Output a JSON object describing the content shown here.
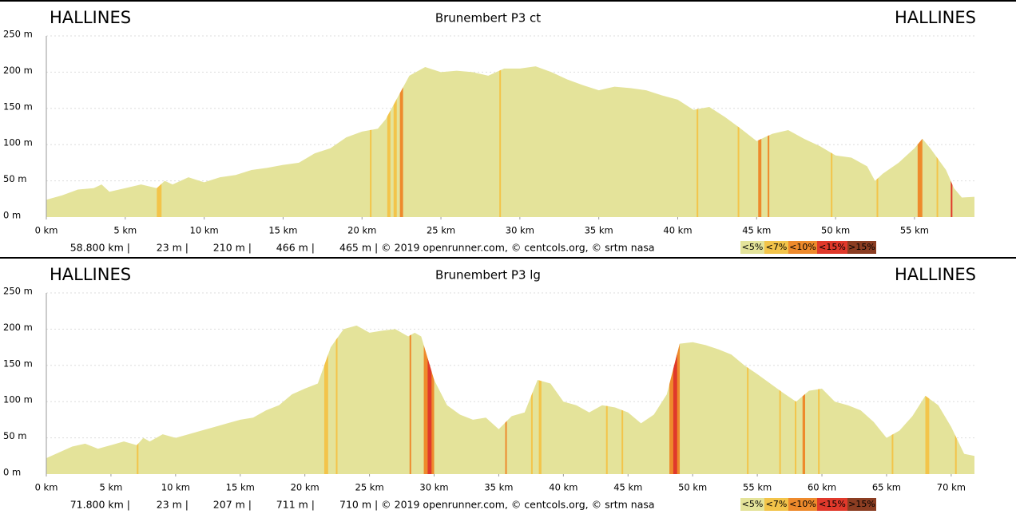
{
  "chart_data": [
    {
      "type": "area",
      "title": "Brunembert P3 ct",
      "start_label": "HALLINES",
      "end_label": "HALLINES",
      "color": "#e4e39a",
      "x": [
        0,
        1,
        2,
        3,
        3.5,
        4,
        5,
        6,
        7,
        7.5,
        8,
        9,
        10,
        11,
        12,
        13,
        14,
        15,
        16,
        17,
        18,
        19,
        20,
        21,
        21.5,
        22,
        22.5,
        23,
        24,
        25,
        26,
        27,
        28,
        29,
        30,
        31,
        32,
        33,
        34,
        35,
        36,
        37,
        38,
        39,
        40,
        41,
        42,
        43,
        44,
        45,
        45.5,
        46,
        47,
        48,
        49,
        50,
        51,
        52,
        52.5,
        53,
        54,
        55,
        55.5,
        56,
        57,
        57.5,
        58,
        58.8
      ],
      "values": [
        24,
        30,
        38,
        40,
        45,
        35,
        40,
        45,
        40,
        50,
        45,
        55,
        48,
        55,
        58,
        65,
        68,
        72,
        75,
        88,
        95,
        110,
        118,
        122,
        135,
        155,
        175,
        195,
        207,
        200,
        202,
        200,
        195,
        205,
        205,
        208,
        200,
        190,
        182,
        175,
        180,
        178,
        175,
        168,
        162,
        148,
        152,
        138,
        122,
        105,
        110,
        115,
        120,
        108,
        98,
        85,
        82,
        70,
        50,
        60,
        75,
        95,
        108,
        95,
        65,
        40,
        27,
        28
      ],
      "xlim": [
        0,
        58.8
      ],
      "ylim": [
        0,
        250
      ],
      "xticks": [
        {
          "value": 0,
          "label": "0 km"
        },
        {
          "value": 5,
          "label": "5 km"
        },
        {
          "value": 10,
          "label": "10 km"
        },
        {
          "value": 15,
          "label": "15 km"
        },
        {
          "value": 20,
          "label": "20 km"
        },
        {
          "value": 25,
          "label": "25 km"
        },
        {
          "value": 30,
          "label": "30 km"
        },
        {
          "value": 35,
          "label": "35 km"
        },
        {
          "value": 40,
          "label": "40 km"
        },
        {
          "value": 45,
          "label": "45 km"
        },
        {
          "value": 50,
          "label": "50 km"
        },
        {
          "value": 55,
          "label": "55 km"
        }
      ],
      "yticks": [
        {
          "value": 0,
          "label": "0 m"
        },
        {
          "value": 50,
          "label": "50 m"
        },
        {
          "value": 100,
          "label": "100 m"
        },
        {
          "value": 150,
          "label": "150 m"
        },
        {
          "value": 200,
          "label": "200 m"
        },
        {
          "value": 250,
          "label": "250 m"
        }
      ],
      "grid": true,
      "grade_bands": [
        {
          "from": 7.0,
          "to": 7.3,
          "level": 1
        },
        {
          "from": 20.5,
          "to": 20.6,
          "level": 1
        },
        {
          "from": 21.6,
          "to": 21.8,
          "level": 1
        },
        {
          "from": 22.0,
          "to": 22.2,
          "level": 1
        },
        {
          "from": 22.4,
          "to": 22.6,
          "level": 2
        },
        {
          "from": 28.7,
          "to": 28.8,
          "level": 1
        },
        {
          "from": 41.2,
          "to": 41.3,
          "level": 1
        },
        {
          "from": 43.8,
          "to": 43.9,
          "level": 1
        },
        {
          "from": 45.1,
          "to": 45.3,
          "level": 2
        },
        {
          "from": 45.7,
          "to": 45.8,
          "level": 2
        },
        {
          "from": 49.7,
          "to": 49.8,
          "level": 1
        },
        {
          "from": 52.6,
          "to": 52.7,
          "level": 1
        },
        {
          "from": 55.2,
          "to": 55.5,
          "level": 2
        },
        {
          "from": 56.4,
          "to": 56.5,
          "level": 1
        },
        {
          "from": 57.3,
          "to": 57.4,
          "level": 3
        }
      ],
      "stats": [
        "58.800 km |",
        "23 m |",
        "210 m |",
        "466 m |",
        "465 m | © 2019 openrunner.com, © centcols.org, © srtm nasa"
      ],
      "legend": [
        {
          "label": "<5%",
          "color": "#e4e39a"
        },
        {
          "label": "<7%",
          "color": "#f3c44a"
        },
        {
          "label": "<10%",
          "color": "#ee8a2c"
        },
        {
          "label": "<15%",
          "color": "#e0392b"
        },
        {
          "label": ">15%",
          "color": "#8b3d22"
        }
      ]
    },
    {
      "type": "area",
      "title": "Brunembert P3 lg",
      "start_label": "HALLINES",
      "end_label": "HALLINES",
      "color": "#e4e39a",
      "x": [
        0,
        1,
        2,
        3,
        4,
        5,
        6,
        7,
        7.5,
        8,
        9,
        10,
        11,
        12,
        13,
        14,
        15,
        16,
        17,
        18,
        19,
        20,
        21,
        21.5,
        22,
        23,
        24,
        25,
        26,
        27,
        28,
        28.5,
        29,
        30,
        31,
        32,
        33,
        34,
        35,
        36,
        37,
        38,
        39,
        40,
        41,
        42,
        43,
        44,
        45,
        46,
        47,
        48,
        49,
        50,
        51,
        52,
        53,
        54,
        55,
        56,
        57,
        58,
        59,
        60,
        61,
        62,
        63,
        64,
        65,
        66,
        67,
        68,
        69,
        70,
        71,
        71.8
      ],
      "values": [
        22,
        30,
        38,
        42,
        35,
        40,
        45,
        40,
        50,
        45,
        55,
        50,
        55,
        60,
        65,
        70,
        75,
        78,
        88,
        95,
        110,
        118,
        125,
        150,
        175,
        200,
        205,
        195,
        198,
        200,
        190,
        195,
        190,
        130,
        95,
        82,
        75,
        78,
        62,
        80,
        85,
        130,
        125,
        100,
        95,
        85,
        95,
        92,
        85,
        70,
        82,
        110,
        180,
        182,
        178,
        172,
        165,
        150,
        138,
        125,
        112,
        100,
        115,
        118,
        100,
        95,
        88,
        72,
        50,
        60,
        80,
        108,
        95,
        65,
        28,
        25
      ],
      "xlim": [
        0,
        71.8
      ],
      "ylim": [
        0,
        250
      ],
      "xticks": [
        {
          "value": 0,
          "label": "0 km"
        },
        {
          "value": 5,
          "label": "5 km"
        },
        {
          "value": 10,
          "label": "10 km"
        },
        {
          "value": 15,
          "label": "15 km"
        },
        {
          "value": 20,
          "label": "20 km"
        },
        {
          "value": 25,
          "label": "25 km"
        },
        {
          "value": 30,
          "label": "30 km"
        },
        {
          "value": 35,
          "label": "35 km"
        },
        {
          "value": 40,
          "label": "40 km"
        },
        {
          "value": 45,
          "label": "45 km"
        },
        {
          "value": 50,
          "label": "50 km"
        },
        {
          "value": 55,
          "label": "55 km"
        },
        {
          "value": 60,
          "label": "60 km"
        },
        {
          "value": 65,
          "label": "65 km"
        },
        {
          "value": 70,
          "label": "70 km"
        }
      ],
      "yticks": [
        {
          "value": 0,
          "label": "0 m"
        },
        {
          "value": 50,
          "label": "50 m"
        },
        {
          "value": 100,
          "label": "100 m"
        },
        {
          "value": 150,
          "label": "150 m"
        },
        {
          "value": 200,
          "label": "200 m"
        },
        {
          "value": 250,
          "label": "250 m"
        }
      ],
      "grid": true,
      "grade_bands": [
        {
          "from": 7.0,
          "to": 7.1,
          "level": 1
        },
        {
          "from": 21.5,
          "to": 21.8,
          "level": 1
        },
        {
          "from": 22.4,
          "to": 22.5,
          "level": 1
        },
        {
          "from": 28.1,
          "to": 28.2,
          "level": 2
        },
        {
          "from": 29.2,
          "to": 30.0,
          "level": 2
        },
        {
          "from": 29.5,
          "to": 29.8,
          "level": 3
        },
        {
          "from": 35.5,
          "to": 35.6,
          "level": 2
        },
        {
          "from": 37.5,
          "to": 37.6,
          "level": 1
        },
        {
          "from": 38.1,
          "to": 38.3,
          "level": 1
        },
        {
          "from": 43.3,
          "to": 43.4,
          "level": 1
        },
        {
          "from": 44.5,
          "to": 44.6,
          "level": 1
        },
        {
          "from": 48.2,
          "to": 49.0,
          "level": 2
        },
        {
          "from": 48.5,
          "to": 48.8,
          "level": 3
        },
        {
          "from": 54.2,
          "to": 54.3,
          "level": 1
        },
        {
          "from": 56.7,
          "to": 56.8,
          "level": 1
        },
        {
          "from": 57.9,
          "to": 58.0,
          "level": 1
        },
        {
          "from": 58.5,
          "to": 58.7,
          "level": 2
        },
        {
          "from": 59.7,
          "to": 59.8,
          "level": 1
        },
        {
          "from": 65.4,
          "to": 65.5,
          "level": 1
        },
        {
          "from": 68.0,
          "to": 68.3,
          "level": 1
        },
        {
          "from": 70.3,
          "to": 70.4,
          "level": 1
        }
      ],
      "stats": [
        "71.800 km |",
        "23 m |",
        "207 m |",
        "711 m |",
        "710 m | © 2019 openrunner.com, © centcols.org, © srtm nasa"
      ],
      "legend": [
        {
          "label": "<5%",
          "color": "#e4e39a"
        },
        {
          "label": "<7%",
          "color": "#f3c44a"
        },
        {
          "label": "<10%",
          "color": "#ee8a2c"
        },
        {
          "label": "<15%",
          "color": "#e0392b"
        },
        {
          "label": ">15%",
          "color": "#8b3d22"
        }
      ]
    }
  ]
}
